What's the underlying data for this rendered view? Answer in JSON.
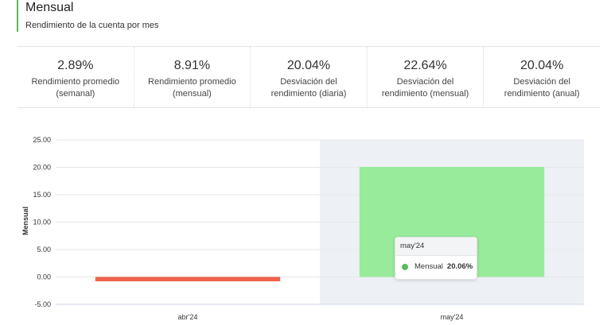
{
  "header": {
    "title": "Mensual",
    "subtitle": "Rendimiento de la cuenta por mes"
  },
  "stats": [
    {
      "value": "2.89%",
      "label_line1": "Rendimiento promedio",
      "label_line2": "(semanal)"
    },
    {
      "value": "8.91%",
      "label_line1": "Rendimiento promedio",
      "label_line2": "(mensual)"
    },
    {
      "value": "20.04%",
      "label_line1": "Desviación del",
      "label_line2": "rendimiento (diaria)"
    },
    {
      "value": "22.64%",
      "label_line1": "Desviación del",
      "label_line2": "rendimiento (mensual)"
    },
    {
      "value": "20.04%",
      "label_line1": "Desviación del",
      "label_line2": "rendimiento (anual)"
    }
  ],
  "tooltip": {
    "category": "may'24",
    "series_name": "Mensual",
    "value": "20.06%"
  },
  "colors": {
    "accent": "#5cb85c",
    "positive_bar": "#98eb9b",
    "negative_bar": "#f0624e",
    "hover_band": "#edf1f6"
  },
  "chart_data": {
    "type": "bar",
    "categories": [
      "abr'24",
      "may'24"
    ],
    "series": [
      {
        "name": "Mensual",
        "values": [
          -0.8,
          20.06
        ]
      }
    ],
    "ylabel": "Mensual",
    "xlabel": "",
    "ylim": [
      -5,
      25
    ],
    "yticks": [
      "-5.00",
      "0.00",
      "5.00",
      "10.00",
      "15.00",
      "20.00",
      "25.00"
    ],
    "grid": true,
    "highlighted_category": "may'24"
  }
}
